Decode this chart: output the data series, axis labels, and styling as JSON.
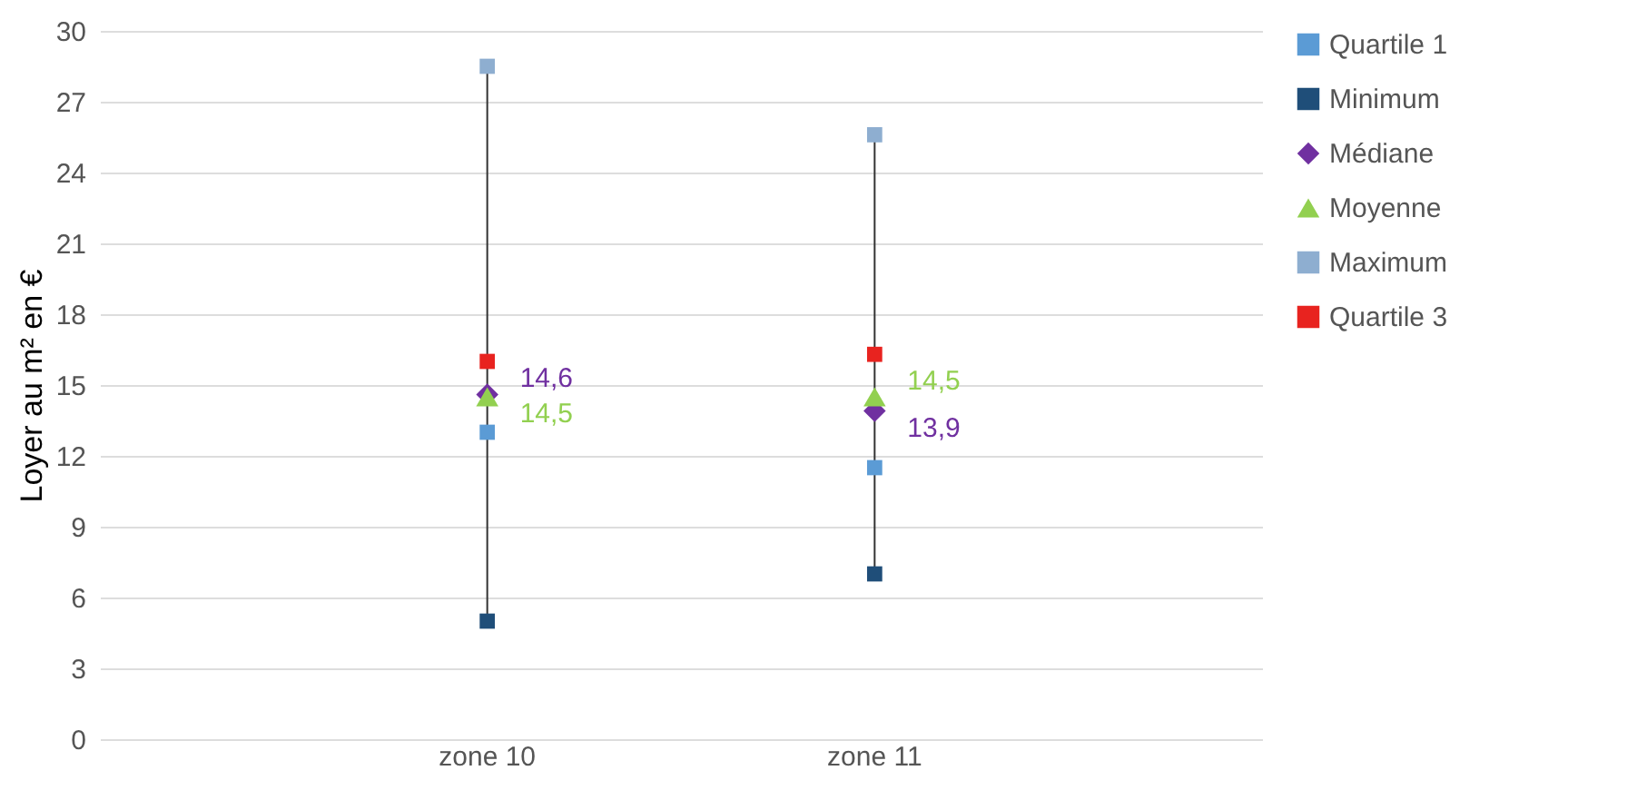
{
  "chart_data": {
    "type": "scatter",
    "ylabel": "Loyer au m² en €",
    "categories": [
      "zone 10",
      "zone 11"
    ],
    "series": [
      {
        "name": "Quartile 1",
        "color": "#5b9bd5",
        "marker": "square",
        "values": [
          13,
          11.5
        ]
      },
      {
        "name": "Minimum",
        "color": "#1f4e79",
        "marker": "square",
        "values": [
          5,
          7
        ]
      },
      {
        "name": "Médiane",
        "color": "#7030a0",
        "marker": "diamond",
        "values": [
          14.6,
          13.9
        ],
        "value_labels": [
          "14,6",
          "13,9"
        ]
      },
      {
        "name": "Moyenne",
        "color": "#92d050",
        "marker": "triangle",
        "values": [
          14.5,
          14.5
        ],
        "value_labels": [
          "14,5",
          "14,5"
        ]
      },
      {
        "name": "Maximum",
        "color": "#8eaed0",
        "marker": "square",
        "values": [
          28.5,
          25.6
        ]
      },
      {
        "name": "Quartile 3",
        "color": "#e8231f",
        "marker": "square",
        "values": [
          16,
          16.3
        ]
      }
    ],
    "ylim": [
      0,
      30
    ],
    "yticks": [
      0,
      3,
      6,
      9,
      12,
      15,
      18,
      21,
      24,
      27,
      30
    ],
    "grid": "y",
    "legend": "right",
    "line_style": "solid"
  }
}
